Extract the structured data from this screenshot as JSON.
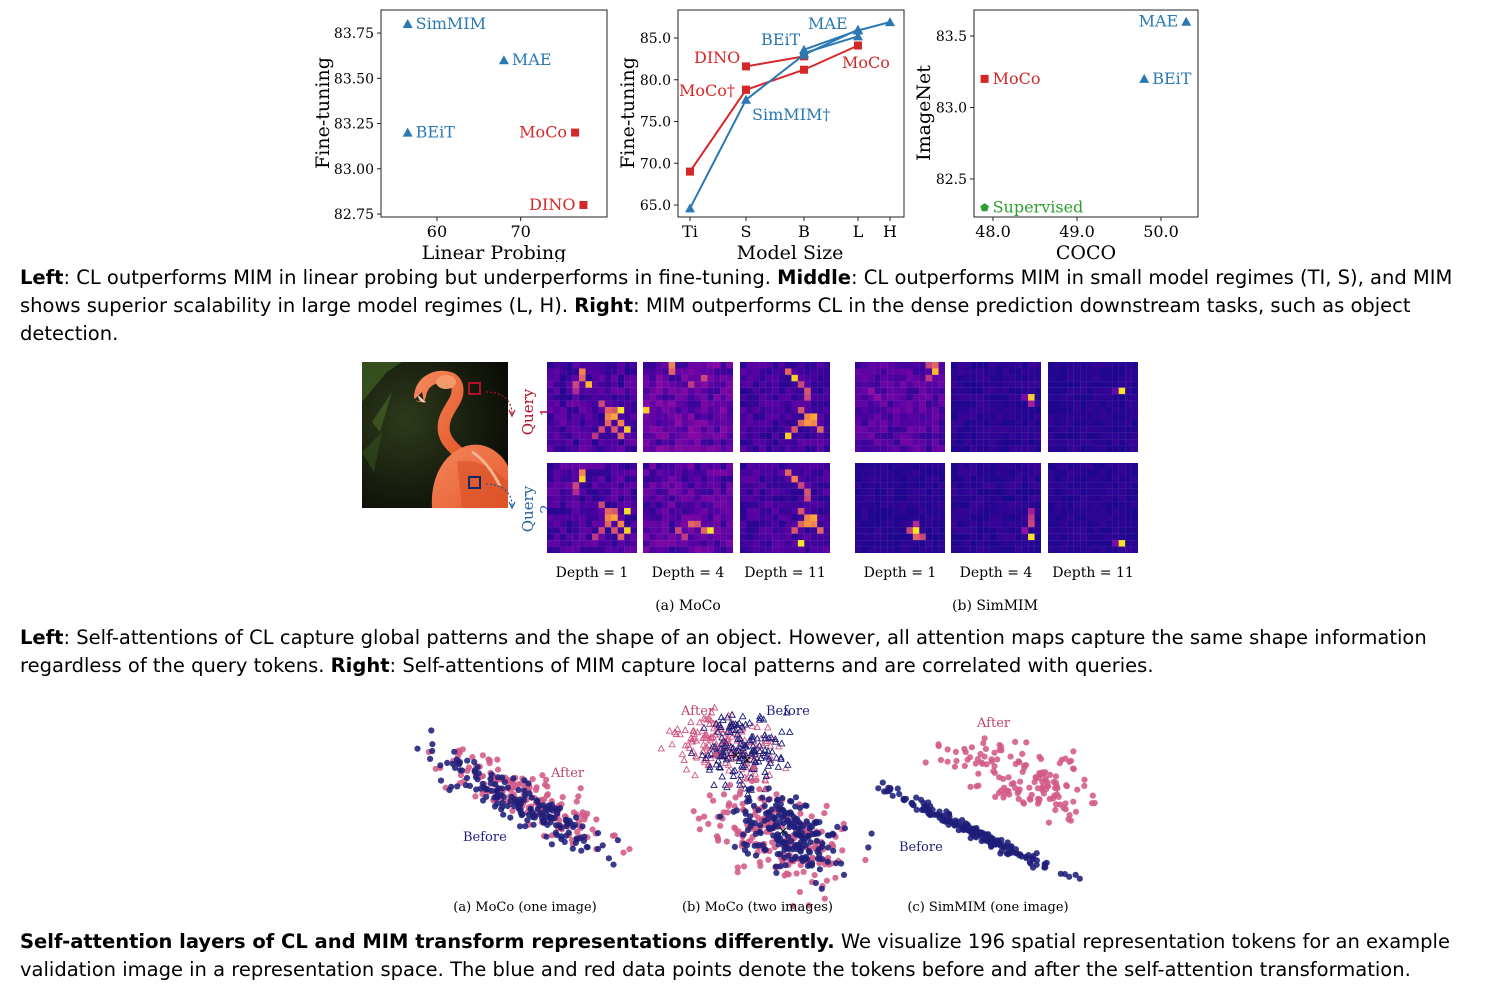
{
  "figure1": {
    "left": {
      "xlabel": "Linear Probing",
      "ylabel": "Fine-tuning",
      "xticks": [
        "60",
        "70"
      ],
      "yticks": [
        "83.75",
        "83.50",
        "83.25",
        "83.00",
        "82.75"
      ]
    },
    "middle": {
      "xlabel": "Model Size",
      "ylabel": "Fine-tuning",
      "xticks": [
        "Ti",
        "S",
        "B",
        "L",
        "H"
      ],
      "yticks": [
        "85.0",
        "80.0",
        "75.0",
        "70.0",
        "65.0"
      ]
    },
    "right": {
      "xlabel": "COCO",
      "ylabel": "ImageNet",
      "xticks": [
        "48.0",
        "49.0",
        "50.0"
      ],
      "yticks": [
        "83.5",
        "83.0",
        "82.5"
      ]
    }
  },
  "chart_data": [
    {
      "type": "scatter",
      "xlabel": "Linear Probing",
      "ylabel": "Fine-tuning",
      "ylim": [
        82.75,
        83.8
      ],
      "points": [
        {
          "label": "SimMIM",
          "x": 56.5,
          "y": 83.8,
          "marker": "triangle",
          "color": "#2a78b4"
        },
        {
          "label": "MAE",
          "x": 68,
          "y": 83.6,
          "marker": "triangle",
          "color": "#2a78b4"
        },
        {
          "label": "BEiT",
          "x": 56.5,
          "y": 83.2,
          "marker": "triangle",
          "color": "#2a78b4"
        },
        {
          "label": "MoCo",
          "x": 76.5,
          "y": 83.2,
          "marker": "square",
          "color": "#d62728"
        },
        {
          "label": "DINO",
          "x": 77.5,
          "y": 82.8,
          "marker": "square",
          "color": "#d62728"
        }
      ]
    },
    {
      "type": "line",
      "xlabel": "Model Size",
      "ylabel": "Fine-tuning",
      "categories": [
        "Ti",
        "S",
        "B",
        "L",
        "H"
      ],
      "ylim": [
        64,
        87.5
      ],
      "series": [
        {
          "name": "MoCo†",
          "color": "#d62728",
          "marker": "square",
          "x": [
            "Ti",
            "S"
          ],
          "values": [
            69.0,
            78.8
          ]
        },
        {
          "name": "DINO",
          "color": "#d62728",
          "marker": "square",
          "x": [
            "S",
            "B"
          ],
          "values": [
            81.6,
            82.8
          ]
        },
        {
          "name": "MoCo",
          "color": "#d62728",
          "marker": "square",
          "x": [
            "S",
            "B",
            "L"
          ],
          "values": [
            78.8,
            81.2,
            84.1
          ]
        },
        {
          "name": "SimMIM†",
          "color": "#2a78b4",
          "marker": "triangle",
          "x": [
            "Ti",
            "S",
            "B",
            "L"
          ],
          "values": [
            64.6,
            77.6,
            83.0,
            86.0
          ]
        },
        {
          "name": "BEiT",
          "color": "#2a78b4",
          "marker": "triangle",
          "x": [
            "B",
            "L"
          ],
          "values": [
            83.2,
            85.2
          ]
        },
        {
          "name": "MAE",
          "color": "#2a78b4",
          "marker": "triangle",
          "x": [
            "B",
            "L",
            "H"
          ],
          "values": [
            83.6,
            85.9,
            86.9
          ]
        }
      ]
    },
    {
      "type": "scatter",
      "xlabel": "COCO",
      "ylabel": "ImageNet",
      "ylim": [
        82.3,
        83.65
      ],
      "points": [
        {
          "label": "MAE",
          "x": 50.3,
          "y": 83.6,
          "marker": "triangle",
          "color": "#2a78b4"
        },
        {
          "label": "MoCo",
          "x": 47.9,
          "y": 83.2,
          "marker": "square",
          "color": "#d62728"
        },
        {
          "label": "BEiT",
          "x": 49.8,
          "y": 83.2,
          "marker": "triangle",
          "color": "#2a78b4"
        },
        {
          "label": "Supervised",
          "x": 47.9,
          "y": 82.3,
          "marker": "pentagon",
          "color": "#2ca02c"
        }
      ]
    }
  ],
  "caption1": {
    "l_bold": "Left",
    "l_text": ": CL outperforms MIM in linear probing but underperforms in fine-tuning. ",
    "m_bold": "Middle",
    "m_text": ": CL outperforms MIM in small model regimes (TI, S), and MIM shows superior scalability in large model regimes (L, H). ",
    "r_bold": "Right",
    "r_text": ": MIM outperforms CL in the dense prediction downstream tasks, such as object detection."
  },
  "figure2": {
    "query1": "Query 1",
    "query2": "Query 2",
    "depths": [
      "Depth = 1",
      "Depth = 4",
      "Depth = 11"
    ],
    "panel_a": "(a) MoCo",
    "panel_b": "(b) SimMIM"
  },
  "caption2": {
    "l_bold": "Left",
    "l_text": ": Self-attentions of CL capture global patterns and the shape of an object. However, all attention maps capture the same shape information regardless of the query tokens. ",
    "r_bold": "Right",
    "r_text": ": Self-attentions of MIM capture local patterns and are correlated with queries."
  },
  "figure3": {
    "after": "After",
    "before": "Before",
    "panel_a": "(a) MoCo (one image)",
    "panel_b": "(b) MoCo (two images)",
    "panel_c": "(c) SimMIM (one image)",
    "colors": {
      "before": "#1f1f7a",
      "after": "#d35a86"
    }
  },
  "caption3": {
    "bold": "Self-attention layers of CL and MIM transform representations differently.",
    "text": " We visualize 196 spatial representation tokens for an example validation image in a representation space. The blue and red data points denote the tokens before and after the self-attention transformation."
  }
}
